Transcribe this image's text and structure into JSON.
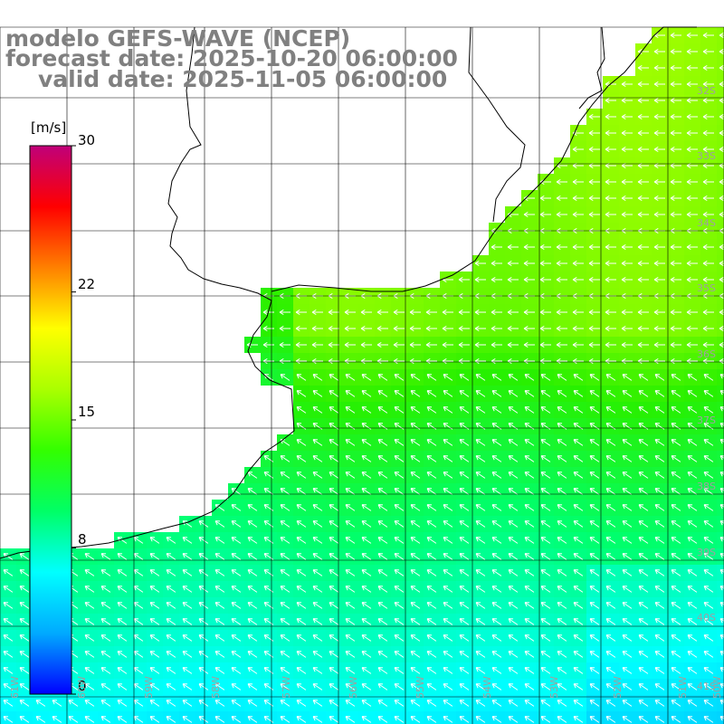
{
  "title": {
    "model": "modelo GEFS-WAVE (NCEP)",
    "forecast": "forecast date: 2025-10-20 06:00:00",
    "valid": "valid date: 2025-11-05 06:00:00"
  },
  "colorbar": {
    "unit": "[m/s]",
    "min": 0,
    "max": 30,
    "ticks": [
      {
        "value": 30,
        "label": "30"
      },
      {
        "value": 22,
        "label": "22"
      },
      {
        "value": 15,
        "label": "15"
      },
      {
        "value": 8,
        "label": "8"
      },
      {
        "value": 0,
        "label": "0"
      }
    ],
    "colors": [
      "#0000ff",
      "#00aaff",
      "#00ffff",
      "#00ff66",
      "#33ff00",
      "#aaff00",
      "#ffff00",
      "#ff8000",
      "#ff0000",
      "#c0007a"
    ]
  },
  "lat_labels": [
    "32S",
    "33S",
    "34S",
    "35S",
    "36S",
    "37S",
    "38S",
    "39S",
    "40S",
    "41S"
  ],
  "lon_labels": [
    "61W",
    "60W",
    "59W",
    "58W",
    "57W",
    "56W",
    "55W",
    "54W",
    "53W",
    "52W",
    "51W",
    "50W"
  ],
  "colors": {
    "coast": "#000000",
    "grid": "#000000",
    "arrow": "#ffffff",
    "title": "#808080",
    "tick_label": "#a0a0a0"
  }
}
